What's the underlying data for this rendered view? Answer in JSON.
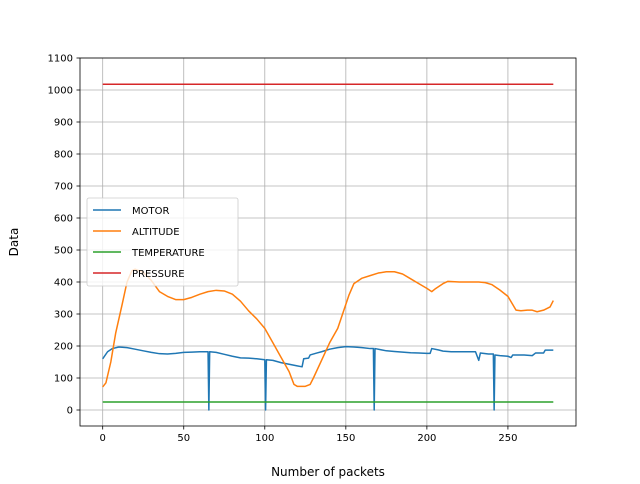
{
  "chart_data": {
    "type": "line",
    "xlabel": "Number of packets",
    "ylabel": "Data",
    "xlim": [
      -14,
      292
    ],
    "ylim": [
      -50,
      1100
    ],
    "xticks": [
      0,
      50,
      100,
      150,
      200,
      250
    ],
    "yticks": [
      0,
      100,
      200,
      300,
      400,
      500,
      600,
      700,
      800,
      900,
      1000,
      1100
    ],
    "grid": true,
    "legend_position": "center-left",
    "series": [
      {
        "name": "MOTOR",
        "color": "#1f77b4",
        "points": [
          [
            0,
            160
          ],
          [
            3,
            182
          ],
          [
            6,
            192
          ],
          [
            10,
            197
          ],
          [
            15,
            195
          ],
          [
            20,
            190
          ],
          [
            25,
            185
          ],
          [
            30,
            180
          ],
          [
            35,
            176
          ],
          [
            40,
            175
          ],
          [
            45,
            177
          ],
          [
            50,
            180
          ],
          [
            55,
            181
          ],
          [
            60,
            182
          ],
          [
            65,
            182
          ],
          [
            65.5,
            0
          ],
          [
            66,
            182
          ],
          [
            70,
            180
          ],
          [
            75,
            174
          ],
          [
            80,
            168
          ],
          [
            85,
            163
          ],
          [
            90,
            162
          ],
          [
            95,
            160
          ],
          [
            100,
            157
          ],
          [
            100.5,
            0
          ],
          [
            101,
            157
          ],
          [
            105,
            155
          ],
          [
            110,
            148
          ],
          [
            115,
            143
          ],
          [
            120,
            138
          ],
          [
            123,
            135
          ],
          [
            124,
            160
          ],
          [
            127,
            162
          ],
          [
            128,
            172
          ],
          [
            132,
            178
          ],
          [
            135,
            182
          ],
          [
            140,
            190
          ],
          [
            145,
            195
          ],
          [
            150,
            198
          ],
          [
            155,
            197
          ],
          [
            160,
            195
          ],
          [
            165,
            192
          ],
          [
            167,
            192
          ],
          [
            167.5,
            0
          ],
          [
            168,
            192
          ],
          [
            172,
            188
          ],
          [
            175,
            185
          ],
          [
            180,
            183
          ],
          [
            185,
            181
          ],
          [
            190,
            179
          ],
          [
            195,
            178
          ],
          [
            200,
            177
          ],
          [
            202,
            177
          ],
          [
            203,
            192
          ],
          [
            207,
            188
          ],
          [
            210,
            184
          ],
          [
            215,
            182
          ],
          [
            220,
            182
          ],
          [
            225,
            182
          ],
          [
            230,
            182
          ],
          [
            232,
            155
          ],
          [
            233,
            178
          ],
          [
            238,
            175
          ],
          [
            241,
            175
          ],
          [
            241.5,
            0
          ],
          [
            242,
            172
          ],
          [
            245,
            170
          ],
          [
            250,
            168
          ],
          [
            252,
            164
          ],
          [
            253,
            172
          ],
          [
            260,
            172
          ],
          [
            265,
            170
          ],
          [
            267,
            178
          ],
          [
            272,
            178
          ],
          [
            273,
            187
          ],
          [
            278,
            187
          ]
        ]
      },
      {
        "name": "ALTITUDE",
        "color": "#ff7f0e",
        "points": [
          [
            0,
            72
          ],
          [
            2,
            85
          ],
          [
            5,
            150
          ],
          [
            8,
            240
          ],
          [
            12,
            330
          ],
          [
            15,
            400
          ],
          [
            18,
            435
          ],
          [
            20,
            440
          ],
          [
            25,
            430
          ],
          [
            30,
            405
          ],
          [
            35,
            370
          ],
          [
            40,
            355
          ],
          [
            45,
            345
          ],
          [
            50,
            345
          ],
          [
            55,
            352
          ],
          [
            60,
            362
          ],
          [
            65,
            370
          ],
          [
            70,
            374
          ],
          [
            75,
            372
          ],
          [
            80,
            362
          ],
          [
            85,
            340
          ],
          [
            90,
            310
          ],
          [
            95,
            285
          ],
          [
            100,
            255
          ],
          [
            105,
            210
          ],
          [
            110,
            165
          ],
          [
            115,
            120
          ],
          [
            118,
            80
          ],
          [
            120,
            74
          ],
          [
            125,
            74
          ],
          [
            128,
            80
          ],
          [
            130,
            100
          ],
          [
            135,
            155
          ],
          [
            140,
            210
          ],
          [
            145,
            255
          ],
          [
            148,
            300
          ],
          [
            152,
            360
          ],
          [
            155,
            395
          ],
          [
            160,
            412
          ],
          [
            165,
            420
          ],
          [
            170,
            428
          ],
          [
            175,
            432
          ],
          [
            180,
            432
          ],
          [
            185,
            425
          ],
          [
            190,
            410
          ],
          [
            195,
            395
          ],
          [
            200,
            380
          ],
          [
            203,
            370
          ],
          [
            205,
            378
          ],
          [
            210,
            395
          ],
          [
            213,
            402
          ],
          [
            220,
            400
          ],
          [
            225,
            400
          ],
          [
            232,
            400
          ],
          [
            236,
            398
          ],
          [
            240,
            392
          ],
          [
            245,
            375
          ],
          [
            250,
            355
          ],
          [
            255,
            312
          ],
          [
            258,
            310
          ],
          [
            262,
            312
          ],
          [
            265,
            312
          ],
          [
            268,
            307
          ],
          [
            272,
            312
          ],
          [
            276,
            322
          ],
          [
            278,
            342
          ]
        ]
      },
      {
        "name": "TEMPERATURE",
        "color": "#2ca02c",
        "points": [
          [
            0,
            25
          ],
          [
            278,
            25
          ]
        ]
      },
      {
        "name": "PRESSURE",
        "color": "#d62728",
        "points": [
          [
            0,
            1018
          ],
          [
            278,
            1018
          ]
        ]
      }
    ]
  }
}
